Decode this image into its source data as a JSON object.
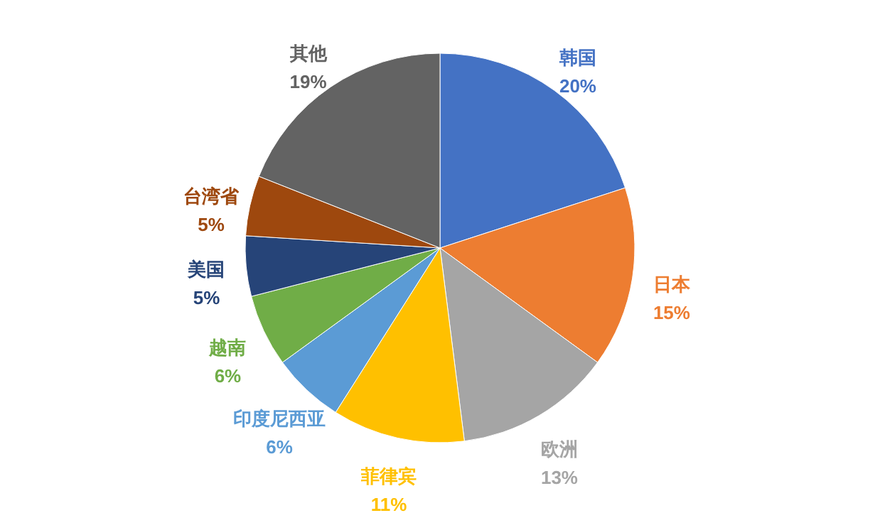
{
  "chart_data": {
    "type": "pie",
    "categories": [
      "韩国",
      "日本",
      "欧洲",
      "菲律宾",
      "印度尼西亚",
      "越南",
      "美国",
      "台湾省",
      "其他"
    ],
    "values": [
      20,
      15,
      13,
      11,
      6,
      6,
      5,
      5,
      19
    ],
    "colors": [
      "#4472c4",
      "#ed7d31",
      "#a5a5a5",
      "#ffc000",
      "#5b9bd5",
      "#70ad47",
      "#264478",
      "#9e480e",
      "#636363"
    ],
    "value_labels": [
      "20%",
      "15%",
      "13%",
      "11%",
      "6%",
      "6%",
      "5%",
      "5%",
      "19%"
    ]
  }
}
